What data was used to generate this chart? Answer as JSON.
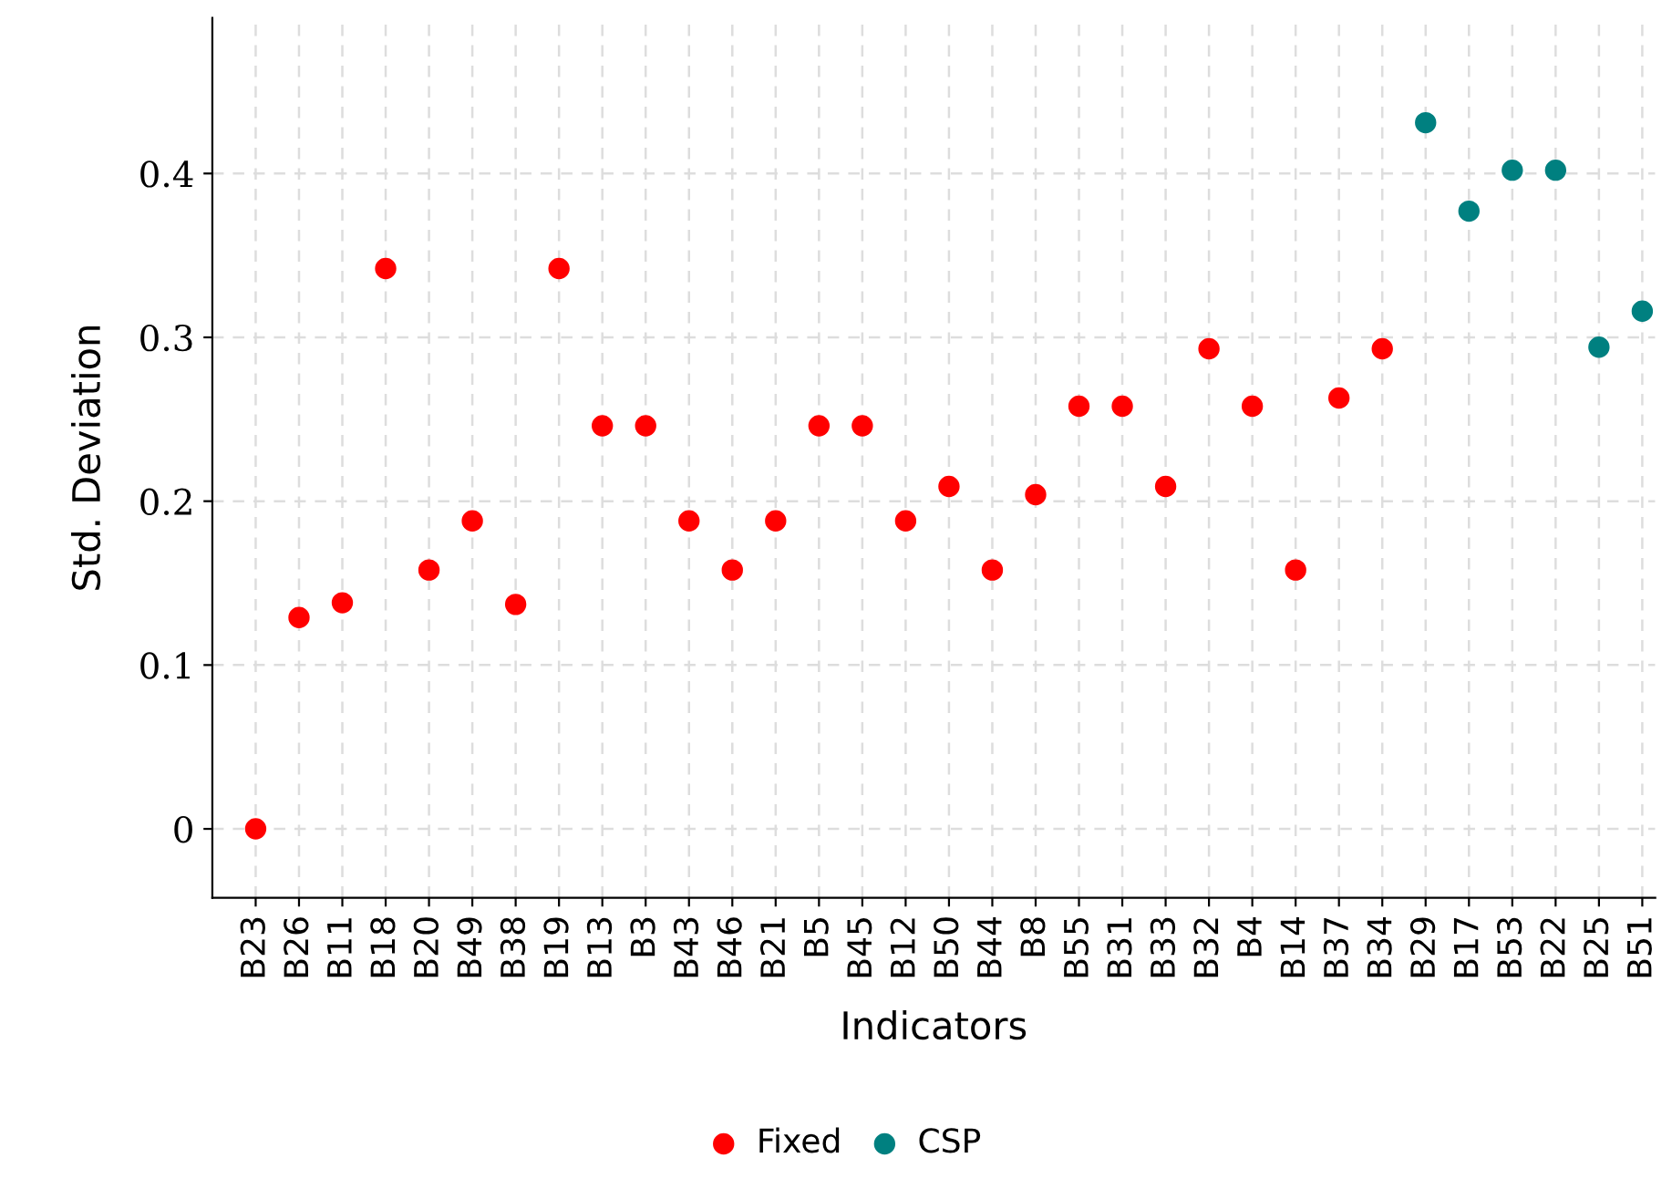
{
  "chart_data": {
    "type": "scatter",
    "xlabel": "Indicators",
    "ylabel": "Std. Deviation",
    "categories": [
      "B23",
      "B26",
      "B11",
      "B18",
      "B20",
      "B49",
      "B38",
      "B19",
      "B13",
      "B3",
      "B43",
      "B46",
      "B21",
      "B5",
      "B45",
      "B12",
      "B50",
      "B44",
      "B8",
      "B55",
      "B31",
      "B33",
      "B32",
      "B4",
      "B14",
      "B37",
      "B34",
      "B29",
      "B17",
      "B53",
      "B22",
      "B25",
      "B51"
    ],
    "series": [
      {
        "name": "Fixed",
        "color": "#ff0000",
        "values": [
          0,
          0.129,
          0.138,
          0.342,
          0.158,
          0.188,
          0.137,
          0.342,
          0.246,
          0.246,
          0.188,
          0.158,
          0.188,
          0.246,
          0.246,
          0.188,
          0.209,
          0.158,
          0.204,
          0.258,
          0.258,
          0.209,
          0.293,
          0.258,
          0.158,
          0.263,
          0.293,
          null,
          null,
          null,
          null,
          null,
          null
        ]
      },
      {
        "name": "CSP",
        "color": "#008080",
        "values": [
          null,
          null,
          null,
          null,
          null,
          null,
          null,
          null,
          null,
          null,
          null,
          null,
          null,
          null,
          null,
          null,
          null,
          null,
          null,
          null,
          null,
          null,
          null,
          null,
          null,
          null,
          null,
          0.431,
          0.377,
          0.402,
          0.402,
          0.294,
          0.316
        ]
      }
    ],
    "ylim": [
      -0.042,
      0.495
    ],
    "yticks": [
      0,
      0.1,
      0.2,
      0.3,
      0.4
    ],
    "grid": true,
    "legend": "bottom",
    "marker": "circle"
  }
}
